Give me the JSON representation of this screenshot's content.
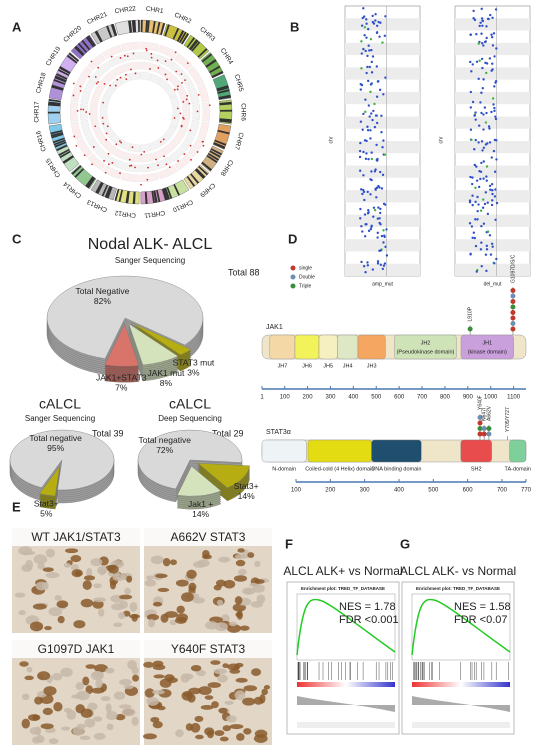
{
  "panel_labels": [
    "A",
    "B",
    "C",
    "D",
    "E",
    "F",
    "G"
  ],
  "circos": {
    "chromosomes": [
      "CHR1",
      "CHR2",
      "CHR3",
      "CHR4",
      "CHR5",
      "CHR6",
      "CHR7",
      "CHR8",
      "CHR9",
      "CHR10",
      "CHR11",
      "CHR12",
      "CHR13",
      "CHR14",
      "CHR15",
      "CHR16",
      "CHR17",
      "CHR18",
      "CHR19",
      "CHR20",
      "CHR21",
      "CHR22"
    ]
  },
  "cnv_plots": {
    "y_label": "chr",
    "x_labels": [
      "amp_mut",
      "del_mut"
    ]
  },
  "chart_data": [
    {
      "type": "pie",
      "title": "Nodal ALK- ALCL",
      "subtitle": "Sanger Sequencing",
      "annotation": "Total 88",
      "categories": [
        "STAT3 mut",
        "JAK1 mut",
        "JAK1+STAT3",
        "Total Negative"
      ],
      "values": [
        3,
        8,
        7,
        82
      ],
      "value_labels": [
        "3%",
        "8%",
        "7%",
        "82%"
      ],
      "colors": [
        "#b5ad12",
        "#d5e3bd",
        "#d9746a",
        "#d9d9d9"
      ]
    },
    {
      "type": "pie",
      "title": "cALCL",
      "subtitle": "Sanger Sequencing",
      "annotation": "Total 39",
      "categories": [
        "Stat3+",
        "Total negative"
      ],
      "values": [
        5,
        95
      ],
      "value_labels": [
        "5%",
        "95%"
      ],
      "colors": [
        "#b5ad12",
        "#d9d9d9"
      ]
    },
    {
      "type": "pie",
      "title": "cALCL",
      "subtitle": "Deep Sequencing",
      "annotation": "Total 29",
      "categories": [
        "Stat3+",
        "Jak1 +",
        "Total negative"
      ],
      "values": [
        14,
        14,
        72
      ],
      "value_labels": [
        "14%",
        "14%",
        "72%"
      ],
      "colors": [
        "#b5ad12",
        "#d5e3bd",
        "#d9d9d9"
      ]
    }
  ],
  "protein_diagrams": {
    "legend": [
      {
        "label": "single",
        "color": "#c0392b"
      },
      {
        "label": "Double",
        "color": "#6d8fb3"
      },
      {
        "label": "Triple",
        "color": "#3a8d3a"
      }
    ],
    "proteins": [
      {
        "name": "JAK1",
        "xlim": [
          1,
          1154
        ],
        "xticks": [
          1,
          100,
          200,
          300,
          400,
          500,
          600,
          700,
          800,
          900,
          1000,
          1100
        ],
        "domains": [
          {
            "label": "JH7",
            "start": 35,
            "end": 145,
            "color": "#f4d9a6"
          },
          {
            "label": "JH6",
            "start": 145,
            "end": 250,
            "color": "#f2f25a"
          },
          {
            "label": "JH5",
            "start": 250,
            "end": 330,
            "color": "#f6f0c0"
          },
          {
            "label": "JH4",
            "start": 330,
            "end": 420,
            "color": "#dfe8c4"
          },
          {
            "label": "JH3",
            "start": 420,
            "end": 540,
            "color": "#f5a660"
          },
          {
            "label": "JH2",
            "description": "(Pseudokinase domain)",
            "start": 580,
            "end": 850,
            "color": "#cfe3b8"
          },
          {
            "label": "JH1",
            "description": "(kinase domain)",
            "start": 870,
            "end": 1100,
            "color": "#c9a0dc"
          }
        ],
        "mutations": [
          {
            "label": "L910P",
            "position": 910,
            "dots": [
              2
            ]
          },
          {
            "label": "G1097D/S/C",
            "position": 1097,
            "dots": [
              0,
              1,
              0,
              0,
              2,
              0,
              1,
              0
            ]
          }
        ]
      },
      {
        "name": "STAT3α",
        "xlim": [
          1,
          770
        ],
        "xticks": [
          100,
          200,
          300,
          400,
          500,
          600,
          700,
          770
        ],
        "domains": [
          {
            "label": "N-domain",
            "start": 1,
            "end": 130,
            "color": "#eef4f6"
          },
          {
            "label": "Coiled-cold (4 Helix) domain",
            "start": 135,
            "end": 320,
            "color": "#e4dc12"
          },
          {
            "label": "DNA binding domain",
            "start": 320,
            "end": 465,
            "color": "#1f4e6e"
          },
          {
            "label": "SH2",
            "start": 580,
            "end": 670,
            "color": "#e84c4c"
          },
          {
            "label": "TA-domain",
            "start": 722,
            "end": 770,
            "color": "#7fcf9a"
          }
        ],
        "mutations": [
          {
            "label": "Y640F",
            "position": 636,
            "dots": [
              0,
              2,
              0,
              1
            ]
          },
          {
            "label": "N647I",
            "position": 648,
            "dots": [
              0,
              1
            ]
          },
          {
            "label": "A662V",
            "position": 662,
            "dots": [
              1,
              2
            ]
          },
          {
            "label": "Y705/Y727",
            "position": 716,
            "dots": []
          }
        ]
      }
    ]
  },
  "ihc": [
    "WT JAK1/STAT3",
    "A662V STAT3",
    "G1097D JAK1",
    "Y640F STAT3"
  ],
  "gsea": [
    {
      "title": "ALCL ALK+ vs Normal",
      "plot_title": "Enrichment plot: TRED_TF_DATABASE",
      "nes": "NES = 1.78",
      "fdr": "FDR <0.001"
    },
    {
      "title": "ALCL ALK- vs Normal",
      "plot_title": "Enrichment plot: TRED_TF_DATABASE",
      "nes": "NES = 1.58",
      "fdr": "FDR <0.07"
    }
  ]
}
